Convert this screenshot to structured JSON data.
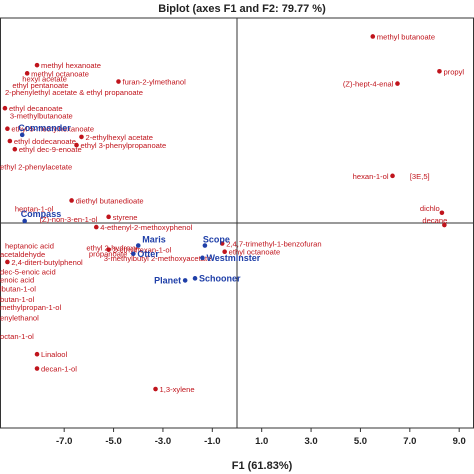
{
  "chart_data": {
    "type": "scatter",
    "title": "Biplot (axes F1 and F2: 79.77 %)",
    "xlabel": "F1 (61.83%)",
    "ylabel": "",
    "xlim": [
      -9.6,
      9.6
    ],
    "ylim": [
      -5.0,
      5.0
    ],
    "xticks": [
      "-7.0",
      "-5.0",
      "-3.0",
      "-1.0",
      "1.0",
      "3.0",
      "5.0",
      "7.0",
      "9.0"
    ],
    "xtick_values": [
      -7,
      -5,
      -3,
      -1,
      1,
      3,
      5,
      7,
      9
    ],
    "colors": {
      "variables": "#c0141c",
      "observations": "#1f3fa8",
      "axes": "#333333"
    },
    "variables": [
      {
        "label": "methyl butanoate",
        "x": 5.5,
        "y": 4.55
      },
      {
        "label": "propyl",
        "x": 8.2,
        "y": 3.7
      },
      {
        "label": "(Z)-hept-4-enal",
        "x": 6.5,
        "y": 3.4
      },
      {
        "label": "hexan-1-ol",
        "x": 6.3,
        "y": 1.15
      },
      {
        "label": "dichlo",
        "x": 8.3,
        "y": 0.25
      },
      {
        "label": "decane",
        "x": 8.4,
        "y": -0.05
      },
      {
        "label": "methyl hexanoate",
        "x": -8.1,
        "y": 3.85
      },
      {
        "label": "methyl octanoate",
        "x": -8.5,
        "y": 3.65
      },
      {
        "label": "furan-2-ylmethanol",
        "x": -4.8,
        "y": 3.45
      },
      {
        "label": "ethyl decanoate",
        "x": -9.4,
        "y": 2.8
      },
      {
        "label": "ethyl 5-methylhexanoate",
        "x": -9.3,
        "y": 2.3
      },
      {
        "label": "ethyl dodecanoate",
        "x": -9.2,
        "y": 2.0
      },
      {
        "label": "ethyl dec-9-enoate",
        "x": -9.0,
        "y": 1.8
      },
      {
        "label": "2-ethylhexyl acetate",
        "x": -6.3,
        "y": 2.1
      },
      {
        "label": "ethyl 3-phenylpropanoate",
        "x": -6.5,
        "y": 1.9
      },
      {
        "label": "diethyl butanedioate",
        "x": -6.7,
        "y": 0.55
      },
      {
        "label": "styrene",
        "x": -5.2,
        "y": 0.15
      },
      {
        "label": "4-ethenyl-2-methoxyphenol",
        "x": -5.7,
        "y": -0.1
      },
      {
        "label": "2-ethylhexan-1-ol",
        "x": -5.2,
        "y": -0.65
      },
      {
        "label": "2,4,7-trimethyl-1-benzofuran",
        "x": -0.6,
        "y": -0.5
      },
      {
        "label": "ethyl octanoate",
        "x": -0.5,
        "y": -0.7
      },
      {
        "label": "2,4-ditert-butylphenol",
        "x": -9.3,
        "y": -0.95
      },
      {
        "label": "Linalool",
        "x": -8.1,
        "y": -3.2
      },
      {
        "label": "decan-1-ol",
        "x": -8.1,
        "y": -3.55
      },
      {
        "label": "1,3-xylene",
        "x": -3.3,
        "y": -4.05
      }
    ],
    "observations": [
      {
        "label": "Commander",
        "x": -8.7,
        "y": 2.15
      },
      {
        "label": "Compass",
        "x": -8.6,
        "y": 0.05
      },
      {
        "label": "Maris",
        "x": -4.0,
        "y": -0.55
      },
      {
        "label": "Otter",
        "x": -4.2,
        "y": -0.75
      },
      {
        "label": "Scope",
        "x": -1.3,
        "y": -0.55
      },
      {
        "label": "Westminster",
        "x": -1.4,
        "y": -0.85
      },
      {
        "label": "Planet",
        "x": -2.1,
        "y": -1.4
      },
      {
        "label": "Schooner",
        "x": -1.7,
        "y": -1.35
      }
    ],
    "text_only_labels": [
      {
        "label": "hexyl acetate",
        "x": -8.7,
        "y": 3.52
      },
      {
        "label": "ethyl pentanoate",
        "x": -9.1,
        "y": 3.37
      },
      {
        "label": "2-phenylethyl acetate & ethyl propanoate",
        "x": -9.4,
        "y": 3.2
      },
      {
        "label": "3-methylbutanoate",
        "x": -9.2,
        "y": 2.62
      },
      {
        "label": "ethyl 2-phenylacetate",
        "x": -9.6,
        "y": 1.38
      },
      {
        "label": "heptanoic acid",
        "x": -9.4,
        "y": -0.55
      },
      {
        "label": "ethyl 2-hydroxy-",
        "x": -6.1,
        "y": -0.6
      },
      {
        "label": "propanoate",
        "x": -6.0,
        "y": -0.74
      },
      {
        "label": "3-methylbutyl 2-methoxyacetate",
        "x": -5.4,
        "y": -0.85
      },
      {
        "label": "acetaldehyde",
        "x": -9.6,
        "y": -0.75
      },
      {
        "label": "heptan-1-ol",
        "x": -9.0,
        "y": 0.35
      },
      {
        "label": "(Z)-non-3-en-1-ol",
        "x": -8.0,
        "y": 0.1
      },
      {
        "label": "dec-5-enoic acid",
        "x": -9.6,
        "y": -1.18
      },
      {
        "label": "enoic acid",
        "x": -9.6,
        "y": -1.38
      },
      {
        "label": "lbutan-1-ol",
        "x": -9.6,
        "y": -1.6
      },
      {
        "label": "butan-1-ol",
        "x": -9.6,
        "y": -1.85
      },
      {
        "label": "methylpropan-1-ol",
        "x": -9.6,
        "y": -2.05
      },
      {
        "label": "enylethanol",
        "x": -9.6,
        "y": -2.3
      },
      {
        "label": "octan-1-ol",
        "x": -9.6,
        "y": -2.75
      },
      {
        "label": "[3E,5]",
        "x": 7.0,
        "y": 1.15
      }
    ]
  }
}
